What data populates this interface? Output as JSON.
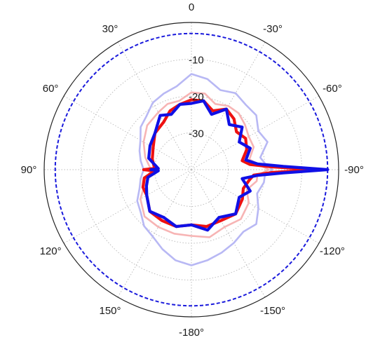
{
  "chart_data": {
    "type": "polar",
    "angle_direction": "counter-clockwise, 0° at top, -90° at right",
    "angle_tick_labels": [
      {
        "angle": 0,
        "text": "0"
      },
      {
        "angle": 30,
        "text": "30°"
      },
      {
        "angle": 60,
        "text": "60°"
      },
      {
        "angle": 90,
        "text": "90°"
      },
      {
        "angle": 120,
        "text": "120°"
      },
      {
        "angle": 150,
        "text": "150°"
      },
      {
        "angle": 180,
        "text": "-180°"
      },
      {
        "angle": -150,
        "text": "-150°"
      },
      {
        "angle": -120,
        "text": "-120°"
      },
      {
        "angle": -90,
        "text": "-90°"
      },
      {
        "angle": -60,
        "text": "-60°"
      },
      {
        "angle": -30,
        "text": "-30°"
      }
    ],
    "radial_range": [
      -40,
      0
    ],
    "radial_ticks": [
      -30,
      -20,
      -10
    ],
    "radial_tick_labels": [
      "-30",
      "-20",
      "-10"
    ],
    "grid": true,
    "reference_circle": {
      "r": -3,
      "color": "#1a1adc",
      "style": "dashed"
    },
    "series": [
      {
        "color": "#b8b8f4",
        "angles": [
          -180,
          -170,
          -160,
          -150,
          -140,
          -130,
          -120,
          -110,
          -100,
          -95,
          -90,
          -85,
          -80,
          -70,
          -60,
          -50,
          -40,
          -30,
          -20,
          -10,
          0,
          10,
          20,
          30,
          40,
          50,
          60,
          70,
          80,
          90,
          100,
          110,
          120,
          130,
          140,
          150,
          160,
          170,
          180
        ],
        "values": [
          -14,
          -15,
          -16,
          -17,
          -18,
          -17,
          -19,
          -21,
          -20,
          -20,
          -18,
          -20,
          -21,
          -18,
          -19,
          -17,
          -17,
          -16,
          -17,
          -15,
          -14,
          -17,
          -18,
          -19,
          -21,
          -22,
          -24,
          -25,
          -26,
          -27,
          -26,
          -25,
          -23,
          -22,
          -20,
          -19,
          -17,
          -15,
          -14
        ]
      },
      {
        "color": "#f7b4b4",
        "angles": [
          -180,
          -165,
          -150,
          -135,
          -120,
          -110,
          -100,
          -95,
          -90,
          -85,
          -80,
          -70,
          -60,
          -50,
          -40,
          -30,
          -20,
          -10,
          0,
          10,
          20,
          30,
          45,
          60,
          75,
          90,
          105,
          120,
          135,
          150,
          165,
          180
        ],
        "values": [
          -22,
          -21,
          -22,
          -21,
          -22,
          -24,
          -22,
          -22,
          -19,
          -22,
          -24,
          -22,
          -22,
          -21,
          -20,
          -20,
          -21,
          -19,
          -19,
          -21,
          -21,
          -22,
          -23,
          -25,
          -27,
          -29,
          -27,
          -24,
          -22,
          -22,
          -22,
          -22
        ]
      },
      {
        "color": "#ee1111",
        "angles": [
          -180,
          -165,
          -150,
          -135,
          -120,
          -110,
          -100,
          -95,
          -92,
          -90,
          -88,
          -85,
          -80,
          -70,
          -60,
          -50,
          -40,
          -30,
          -20,
          -10,
          0,
          10,
          20,
          30,
          45,
          60,
          75,
          88,
          90,
          92,
          100,
          110,
          120,
          135,
          150,
          165,
          180
        ],
        "values": [
          -25,
          -24,
          -24,
          -23,
          -24,
          -25,
          -24,
          -23,
          -18,
          -6,
          -18,
          -24,
          -26,
          -24,
          -23,
          -24,
          -22,
          -21,
          -23,
          -21,
          -21,
          -22,
          -23,
          -25,
          -26,
          -28,
          -29,
          -30,
          -27,
          -30,
          -27,
          -26,
          -26,
          -24,
          -24,
          -24,
          -25
        ]
      },
      {
        "color": "#1010e6",
        "angles": [
          -180,
          -165,
          -150,
          -135,
          -120,
          -110,
          -100,
          -95,
          -92,
          -90,
          -88,
          -85,
          -80,
          -70,
          -60,
          -50,
          -40,
          -30,
          -20,
          -10,
          0,
          10,
          20,
          30,
          45,
          60,
          75,
          88,
          90,
          92,
          100,
          110,
          120,
          135,
          150,
          165,
          180
        ],
        "values": [
          -25,
          -23,
          -25,
          -23,
          -25,
          -23,
          -26,
          -22,
          -15,
          -3,
          -15,
          -22,
          -25,
          -23,
          -25,
          -22,
          -24,
          -21,
          -24,
          -21,
          -22,
          -22,
          -24,
          -23,
          -26,
          -27,
          -28,
          -31,
          -29,
          -31,
          -28,
          -27,
          -26,
          -24,
          -25,
          -24,
          -25
        ]
      }
    ]
  }
}
